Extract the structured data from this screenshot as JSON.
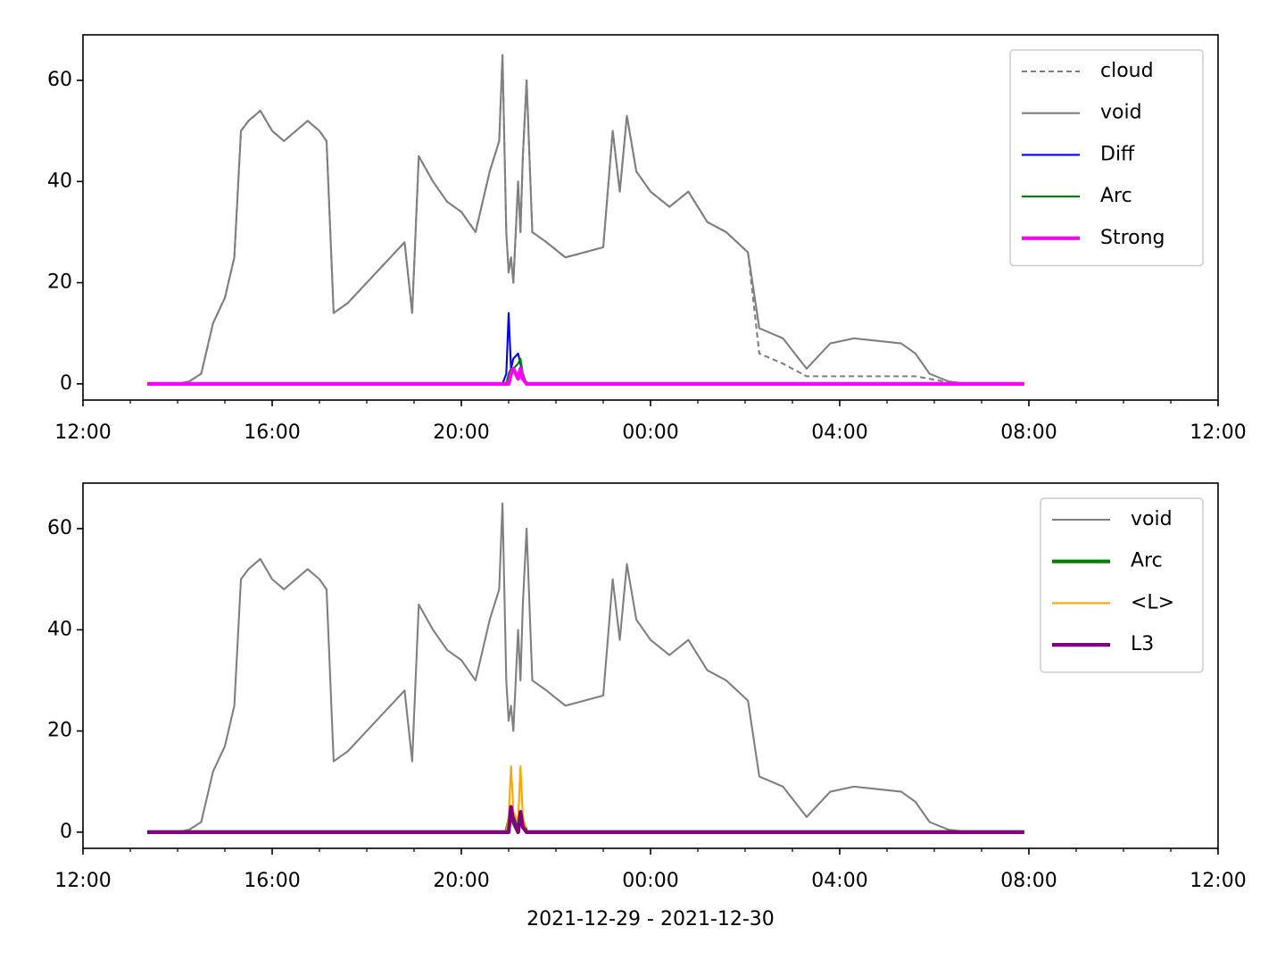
{
  "chart_data": [
    {
      "type": "line",
      "x": [
        1.36,
        2,
        2.25,
        2.5,
        2.75,
        3,
        3.2,
        3.34,
        3.5,
        3.75,
        4,
        4.25,
        4.5,
        4.75,
        5,
        5.15,
        5.3,
        5.6,
        6,
        6.4,
        6.8,
        6.96,
        7.1,
        7.4,
        7.7,
        8.0,
        8.3,
        8.6,
        8.8,
        8.87,
        8.95,
        9.0,
        9.05,
        9.1,
        9.2,
        9.25,
        9.3,
        9.38,
        9.5,
        9.8,
        10.2,
        10.6,
        11.0,
        11.2,
        11.35,
        11.5,
        11.7,
        12.0,
        12.4,
        12.8,
        13.2,
        13.6,
        14.06,
        14.3,
        14.8,
        15.3,
        15.8,
        16.3,
        16.8,
        17.3,
        17.6,
        17.9,
        18.3,
        18.7,
        19.2,
        19.9
      ],
      "series": [
        {
          "name": "cloud",
          "color": "#808080",
          "linewidth": 1.5,
          "linestyle": "dashed",
          "values": [
            0,
            0,
            0.5,
            2,
            12,
            17,
            25,
            50,
            52,
            54,
            50,
            48,
            50,
            52,
            50,
            48,
            14,
            16,
            20,
            24,
            28,
            14,
            45,
            40,
            36,
            34,
            30,
            42,
            48,
            65,
            30,
            22,
            25,
            20,
            40,
            30,
            45,
            60,
            30,
            28,
            25,
            26,
            27,
            50,
            38,
            53,
            42,
            38,
            35,
            38,
            32,
            30,
            26,
            6,
            4,
            1.5,
            1.5,
            1.5,
            1.5,
            1.5,
            1.5,
            1,
            0.3,
            0,
            0,
            0
          ]
        },
        {
          "name": "void",
          "color": "#808080",
          "linewidth": 1.5,
          "linestyle": "solid",
          "values": [
            0,
            0,
            0.5,
            2,
            12,
            17,
            25,
            50,
            52,
            54,
            50,
            48,
            50,
            52,
            50,
            48,
            14,
            16,
            20,
            24,
            28,
            14,
            45,
            40,
            36,
            34,
            30,
            42,
            48,
            65,
            30,
            22,
            25,
            20,
            40,
            30,
            45,
            60,
            30,
            28,
            25,
            26,
            27,
            50,
            38,
            53,
            42,
            38,
            35,
            38,
            32,
            30,
            26,
            11,
            9,
            3,
            8,
            9,
            8.5,
            8,
            6,
            2,
            0.5,
            0,
            0,
            0
          ]
        },
        {
          "name": "Diff",
          "color": "#0000ff",
          "linewidth": 1.5,
          "linestyle": "solid",
          "values": [
            0,
            0,
            0,
            0,
            0,
            0,
            0,
            0,
            0,
            0,
            0,
            0,
            0,
            0,
            0,
            0,
            0,
            0,
            0,
            0,
            0,
            0,
            0,
            0,
            0,
            0,
            0,
            0,
            0,
            0,
            2,
            14,
            3,
            5,
            6,
            4,
            1,
            0,
            0,
            0,
            0,
            0,
            0,
            0,
            0,
            0,
            0,
            0,
            0,
            0,
            0,
            0,
            0,
            0,
            0,
            0,
            0,
            0,
            0,
            0,
            0,
            0,
            0,
            0,
            0,
            0
          ]
        },
        {
          "name": "Arc",
          "color": "#008000",
          "linewidth": 1.5,
          "linestyle": "solid",
          "values": [
            0,
            0,
            0,
            0,
            0,
            0,
            0,
            0,
            0,
            0,
            0,
            0,
            0,
            0,
            0,
            0,
            0,
            0,
            0,
            0,
            0,
            0,
            0,
            0,
            0,
            0,
            0,
            0,
            0,
            0,
            0,
            2,
            3,
            3,
            4,
            5,
            2,
            0,
            0,
            0,
            0,
            0,
            0,
            0,
            0,
            0,
            0,
            0,
            0,
            0,
            0,
            0,
            0,
            0,
            0,
            0,
            0,
            0,
            0,
            0,
            0,
            0,
            0,
            0,
            0,
            0
          ]
        },
        {
          "name": "Strong",
          "color": "#ff00ff",
          "linewidth": 3,
          "linestyle": "solid",
          "values": [
            0,
            0,
            0,
            0,
            0,
            0,
            0,
            0,
            0,
            0,
            0,
            0,
            0,
            0,
            0,
            0,
            0,
            0,
            0,
            0,
            0,
            0,
            0,
            0,
            0,
            0,
            0,
            0,
            0,
            0,
            0,
            0,
            2,
            3,
            1,
            3,
            1,
            0,
            0,
            0,
            0,
            0,
            0,
            0,
            0,
            0,
            0,
            0,
            0,
            0,
            0,
            0,
            0,
            0,
            0,
            0,
            0,
            0,
            0,
            0,
            0,
            0,
            0,
            0,
            0,
            0
          ]
        }
      ],
      "xlim": [
        0,
        24
      ],
      "xticks": [
        {
          "value": 0,
          "label": "12:00"
        },
        {
          "value": 4,
          "label": "16:00"
        },
        {
          "value": 8,
          "label": "20:00"
        },
        {
          "value": 12,
          "label": "00:00"
        },
        {
          "value": 16,
          "label": "04:00"
        },
        {
          "value": 20,
          "label": "08:00"
        },
        {
          "value": 24,
          "label": "12:00"
        }
      ],
      "xminorticks": [
        1,
        2,
        3,
        5,
        6,
        7,
        9,
        10,
        11,
        13,
        14,
        15,
        17,
        18,
        19,
        21,
        22,
        23
      ],
      "ylim": [
        -3.2,
        69
      ],
      "yticks": [
        0,
        20,
        40,
        60
      ],
      "legend": "upper right"
    },
    {
      "type": "line",
      "x": [
        1.36,
        2,
        2.25,
        2.5,
        2.75,
        3,
        3.2,
        3.34,
        3.5,
        3.75,
        4,
        4.25,
        4.5,
        4.75,
        5,
        5.15,
        5.3,
        5.6,
        6,
        6.4,
        6.8,
        6.96,
        7.1,
        7.4,
        7.7,
        8.0,
        8.3,
        8.6,
        8.8,
        8.87,
        8.95,
        9.0,
        9.05,
        9.1,
        9.2,
        9.25,
        9.3,
        9.38,
        9.5,
        9.8,
        10.2,
        10.6,
        11.0,
        11.2,
        11.35,
        11.5,
        11.7,
        12.0,
        12.4,
        12.8,
        13.2,
        13.6,
        14.06,
        14.3,
        14.8,
        15.3,
        15.8,
        16.3,
        16.8,
        17.3,
        17.6,
        17.9,
        18.3,
        18.7,
        19.2,
        19.9
      ],
      "series": [
        {
          "name": "void",
          "color": "#808080",
          "linewidth": 1.5,
          "linestyle": "solid",
          "values": [
            0,
            0,
            0.5,
            2,
            12,
            17,
            25,
            50,
            52,
            54,
            50,
            48,
            50,
            52,
            50,
            48,
            14,
            16,
            20,
            24,
            28,
            14,
            45,
            40,
            36,
            34,
            30,
            42,
            48,
            65,
            30,
            22,
            25,
            20,
            40,
            30,
            45,
            60,
            30,
            28,
            25,
            26,
            27,
            50,
            38,
            53,
            42,
            38,
            35,
            38,
            32,
            30,
            26,
            11,
            9,
            3,
            8,
            9,
            8.5,
            8,
            6,
            2,
            0.5,
            0,
            0,
            0
          ]
        },
        {
          "name": "Arc",
          "color": "#008000",
          "linewidth": 3,
          "linestyle": "solid",
          "values": [
            0,
            0,
            0,
            0,
            0,
            0,
            0,
            0,
            0,
            0,
            0,
            0,
            0,
            0,
            0,
            0,
            0,
            0,
            0,
            0,
            0,
            0,
            0,
            0,
            0,
            0,
            0,
            0,
            0,
            0,
            0,
            2,
            4,
            3,
            0,
            4,
            2,
            0,
            0,
            0,
            0,
            0,
            0,
            0,
            0,
            0,
            0,
            0,
            0,
            0,
            0,
            0,
            0,
            0,
            0,
            0,
            0,
            0,
            0,
            0,
            0,
            0,
            0,
            0,
            0,
            0
          ]
        },
        {
          "name": "<L>",
          "color": "#ffa500",
          "linewidth": 1.5,
          "linestyle": "solid",
          "values": [
            0,
            0,
            0,
            0,
            0,
            0,
            0,
            0,
            0,
            0,
            0,
            0,
            0,
            0,
            0,
            0,
            0,
            0,
            0,
            0,
            0,
            0,
            0,
            0,
            0,
            0,
            0,
            0,
            0,
            0,
            0,
            3,
            13,
            4,
            2,
            13,
            3,
            0,
            0,
            0,
            0,
            0,
            0,
            0,
            0,
            0,
            0,
            0,
            0,
            0,
            0,
            0,
            0,
            0,
            0,
            0,
            0,
            0,
            0,
            0,
            0,
            0,
            0,
            0,
            0,
            0
          ]
        },
        {
          "name": "L3",
          "color": "#800080",
          "linewidth": 3,
          "linestyle": "solid",
          "values": [
            0,
            0,
            0,
            0,
            0,
            0,
            0,
            0,
            0,
            0,
            0,
            0,
            0,
            0,
            0,
            0,
            0,
            0,
            0,
            0,
            0,
            0,
            0,
            0,
            0,
            0,
            0,
            0,
            0,
            0,
            0,
            0,
            5,
            2,
            0,
            4,
            1,
            0,
            0,
            0,
            0,
            0,
            0,
            0,
            0,
            0,
            0,
            0,
            0,
            0,
            0,
            0,
            0,
            0,
            0,
            0,
            0,
            0,
            0,
            0,
            0,
            0,
            0,
            0,
            0,
            0
          ]
        }
      ],
      "xlim": [
        0,
        24
      ],
      "xticks": [
        {
          "value": 0,
          "label": "12:00"
        },
        {
          "value": 4,
          "label": "16:00"
        },
        {
          "value": 8,
          "label": "20:00"
        },
        {
          "value": 12,
          "label": "00:00"
        },
        {
          "value": 16,
          "label": "04:00"
        },
        {
          "value": 20,
          "label": "08:00"
        },
        {
          "value": 24,
          "label": "12:00"
        }
      ],
      "xminorticks": [
        1,
        2,
        3,
        5,
        6,
        7,
        9,
        10,
        11,
        13,
        14,
        15,
        17,
        18,
        19,
        21,
        22,
        23
      ],
      "ylim": [
        -3.2,
        69
      ],
      "yticks": [
        0,
        20,
        40,
        60
      ],
      "xlabel": "2021-12-29 - 2021-12-30",
      "legend": "upper right"
    }
  ]
}
